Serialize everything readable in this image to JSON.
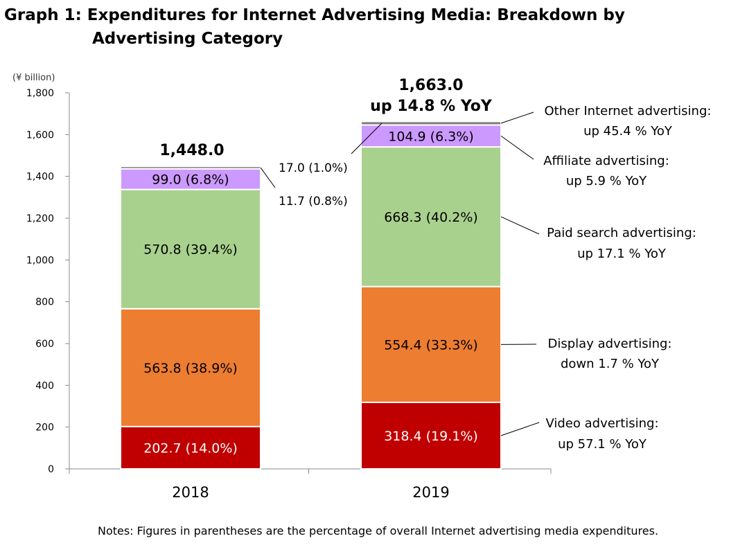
{
  "title": {
    "line1": "Graph 1: Expenditures for Internet Advertising Media: Breakdown by",
    "line2": "Advertising Category"
  },
  "note": "Notes: Figures in parentheses are the percentage of overall Internet advertising media expenditures.",
  "colors": {
    "video": "#C00000",
    "display": "#ED7D31",
    "paid_search": "#A9D18E",
    "affiliate": "#CC99FF",
    "other": "#808080"
  },
  "chart_data": {
    "type": "bar",
    "stacked": true,
    "unit_label": "(¥ billion)",
    "categories": [
      "2018",
      "2019"
    ],
    "ylim": [
      0,
      1800
    ],
    "yticks": [
      "0",
      "200",
      "400",
      "600",
      "800",
      "1,000",
      "1,200",
      "1,400",
      "1,600",
      "1,800"
    ],
    "series": [
      {
        "key": "video",
        "values": [
          202.7,
          318.4
        ],
        "labels": [
          "202.7 (14.0%)",
          "318.4 (19.1%)"
        ]
      },
      {
        "key": "display",
        "values": [
          563.8,
          554.4
        ],
        "labels": [
          "563.8 (38.9%)",
          "554.4 (33.3%)"
        ]
      },
      {
        "key": "paid_search",
        "values": [
          570.8,
          668.3
        ],
        "labels": [
          "570.8 (39.4%)",
          "668.3 (40.2%)"
        ]
      },
      {
        "key": "affiliate",
        "values": [
          99.0,
          104.9
        ],
        "labels": [
          "99.0 (6.8%)",
          "104.9 (6.3%)"
        ]
      },
      {
        "key": "other",
        "values": [
          11.7,
          17.0
        ],
        "labels": [
          "11.7 (0.8%)",
          "17.0 (1.0%)"
        ]
      }
    ],
    "totals": [
      "1,448.0",
      "1,663.0"
    ],
    "total_change": "up 14.8 % YoY",
    "annotations": [
      {
        "series": "other",
        "line1": "Other Internet advertising:",
        "line2": "up 45.4 % YoY"
      },
      {
        "series": "affiliate",
        "line1": "Affiliate advertising:",
        "line2": "up 5.9 % YoY"
      },
      {
        "series": "paid_search",
        "line1": "Paid search advertising:",
        "line2": "up 17.1 % YoY"
      },
      {
        "series": "display",
        "line1": "Display advertising:",
        "line2": "down 1.7 % YoY"
      },
      {
        "series": "video",
        "line1": "Video advertising:",
        "line2": "up 57.1 % YoY"
      }
    ]
  }
}
